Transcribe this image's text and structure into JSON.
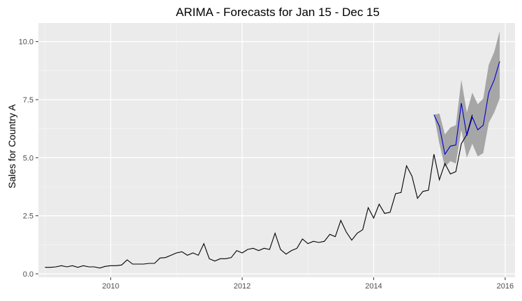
{
  "chart_data": {
    "type": "line",
    "title": "ARIMA - Forecasts for Jan 15 - Dec 15",
    "xlabel": "",
    "ylabel": "Sales for Country A",
    "xlim": [
      2008.9,
      2016.15
    ],
    "ylim": [
      -0.15,
      10.8
    ],
    "x_ticks": [
      2010,
      2012,
      2014,
      2016
    ],
    "x_tick_labels": [
      "2010",
      "2012",
      "2014",
      "2016"
    ],
    "y_ticks": [
      0,
      2.5,
      5,
      7.5,
      10
    ],
    "y_tick_labels": [
      "0.0",
      "2.5",
      "5.0",
      "7.5",
      "10.0"
    ],
    "grid": true,
    "background": "#ebebeb",
    "colors": {
      "history": "#000000",
      "forecast": "#0000cc",
      "interval": "#a6a6a6",
      "grid_major": "#ffffff",
      "grid_minor": "#f5f5f5"
    },
    "series": [
      {
        "role": "history",
        "start": 2009.0,
        "step": 0.08333,
        "values": [
          0.28,
          0.28,
          0.3,
          0.35,
          0.3,
          0.35,
          0.28,
          0.35,
          0.3,
          0.3,
          0.25,
          0.32,
          0.35,
          0.35,
          0.38,
          0.6,
          0.42,
          0.42,
          0.42,
          0.45,
          0.45,
          0.68,
          0.7,
          0.8,
          0.9,
          0.95,
          0.8,
          0.9,
          0.8,
          1.3,
          0.65,
          0.55,
          0.65,
          0.65,
          0.7,
          1.0,
          0.9,
          1.05,
          1.1,
          1.0,
          1.1,
          1.05,
          1.75,
          1.05,
          0.85,
          1.0,
          1.1,
          1.5,
          1.3,
          1.4,
          1.35,
          1.4,
          1.7,
          1.6,
          2.3,
          1.8,
          1.45,
          1.75,
          1.9,
          2.85,
          2.4,
          3.0,
          2.6,
          2.65,
          3.45,
          3.5,
          4.65,
          4.2,
          3.25,
          3.55,
          3.6,
          5.15,
          4.05,
          4.75,
          4.3,
          4.4,
          5.6,
          6.0,
          6.85
        ]
      },
      {
        "role": "forecast",
        "start": 2014.9167,
        "step": 0.08333,
        "values": [
          6.85,
          6.35,
          5.15,
          5.5,
          5.55,
          7.35,
          5.95,
          6.75,
          6.2,
          6.4,
          7.8,
          8.35,
          9.15
        ],
        "lower": [
          6.85,
          5.6,
          4.6,
          4.85,
          4.75,
          6.2,
          5.0,
          5.6,
          5.05,
          5.2,
          6.5,
          6.95,
          7.55
        ],
        "upper": [
          6.85,
          6.9,
          6.0,
          6.3,
          6.4,
          8.35,
          6.95,
          7.8,
          7.3,
          7.55,
          9.0,
          9.55,
          10.45
        ]
      }
    ]
  }
}
